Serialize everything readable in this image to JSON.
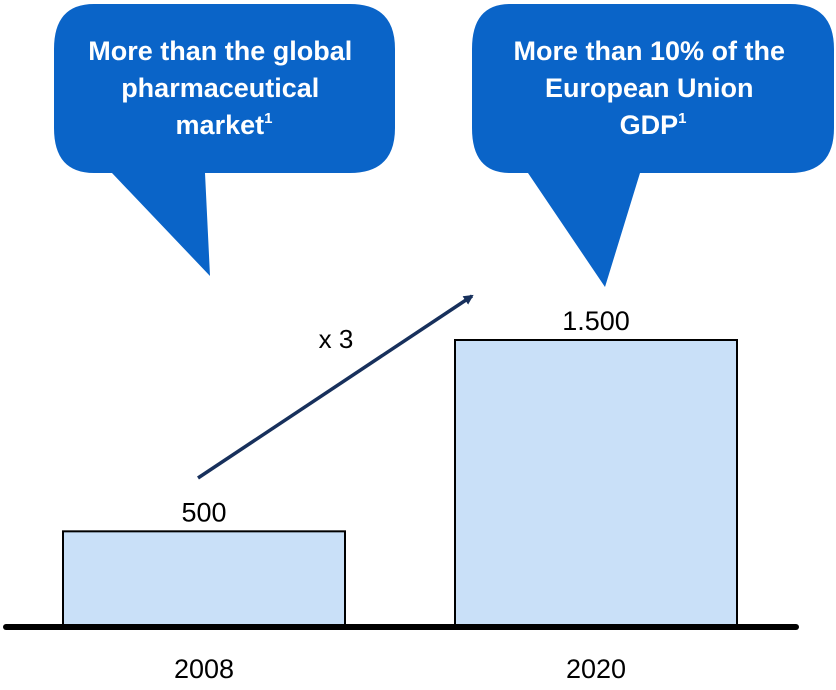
{
  "chart_data": {
    "type": "bar",
    "categories": [
      "2008",
      "2020"
    ],
    "values": [
      500,
      1500
    ],
    "value_labels": [
      "500",
      "1.500"
    ],
    "ylim": [
      0,
      1650
    ],
    "grid": false,
    "growth_label": "x 3",
    "annotations": [
      {
        "lines": [
          "More than the global",
          "pharmaceutical",
          "market"
        ],
        "footnote": "1"
      },
      {
        "lines": [
          "More than 10% of the",
          "European Union",
          "GDP"
        ],
        "footnote": "1"
      }
    ]
  },
  "colors": {
    "bar_fill": "#c9e0f8",
    "bar_stroke": "#000000",
    "bubble": "#0a64c8",
    "arrow": "#17305c"
  }
}
